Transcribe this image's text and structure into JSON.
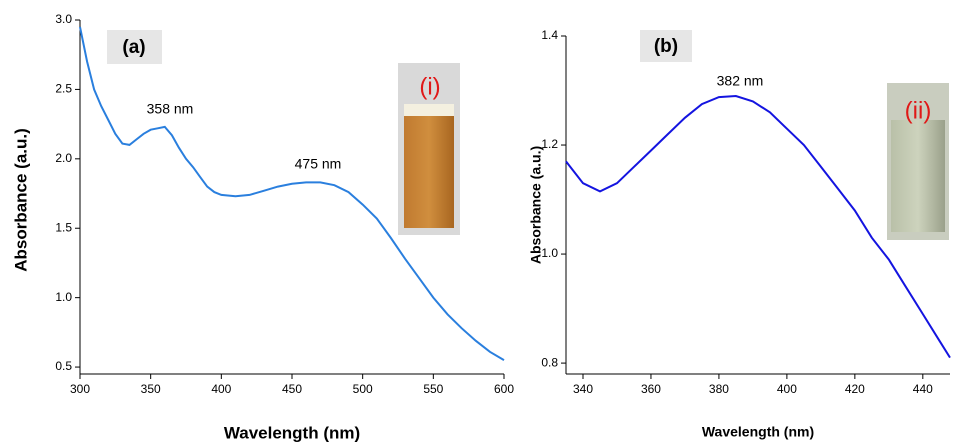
{
  "chart_data": [
    {
      "type": "line",
      "panel_label": "(a)",
      "inset_label": "(i)",
      "annotations": [
        "358 nm",
        "475 nm"
      ],
      "x_label": "Wavelength (nm)",
      "y_label": "Absorbance (a.u.)",
      "x": [
        300,
        305,
        310,
        315,
        320,
        325,
        330,
        335,
        340,
        345,
        350,
        355,
        360,
        365,
        370,
        375,
        380,
        385,
        390,
        395,
        400,
        410,
        420,
        430,
        440,
        450,
        460,
        470,
        480,
        490,
        500,
        510,
        520,
        530,
        540,
        550,
        560,
        570,
        580,
        590,
        600
      ],
      "series": [
        {
          "color": "#2a7fde",
          "values": [
            2.95,
            2.7,
            2.5,
            2.38,
            2.28,
            2.18,
            2.11,
            2.1,
            2.14,
            2.18,
            2.21,
            2.22,
            2.23,
            2.17,
            2.08,
            2.0,
            1.94,
            1.87,
            1.8,
            1.76,
            1.74,
            1.73,
            1.74,
            1.77,
            1.8,
            1.82,
            1.83,
            1.83,
            1.81,
            1.76,
            1.67,
            1.57,
            1.43,
            1.28,
            1.14,
            1.0,
            0.88,
            0.78,
            0.69,
            0.61,
            0.55
          ]
        }
      ],
      "xlim": [
        300,
        600
      ],
      "ylim": [
        0.45,
        3.0
      ],
      "xticks": [
        300,
        350,
        400,
        450,
        500,
        550,
        600
      ],
      "yticks": [
        0.5,
        {
          "value": 1,
          "label": "1.0"
        },
        1.5,
        {
          "value": 2,
          "label": "2.0"
        },
        2.5,
        {
          "value": 3,
          "label": "3.0"
        }
      ]
    },
    {
      "type": "line",
      "panel_label": "(b)",
      "inset_label": "(ii)",
      "annotations": [
        "382 nm"
      ],
      "x_label": "Wavelength (nm)",
      "y_label": "Absorbance (a.u.)",
      "x": [
        335,
        340,
        345,
        350,
        355,
        360,
        365,
        370,
        375,
        380,
        385,
        390,
        395,
        400,
        405,
        410,
        415,
        420,
        425,
        430,
        435,
        440,
        445,
        448
      ],
      "series": [
        {
          "color": "#1414e0",
          "values": [
            1.17,
            1.13,
            1.115,
            1.13,
            1.16,
            1.19,
            1.22,
            1.25,
            1.275,
            1.288,
            1.29,
            1.28,
            1.26,
            1.23,
            1.2,
            1.16,
            1.12,
            1.08,
            1.03,
            0.99,
            0.94,
            0.89,
            0.84,
            0.81
          ]
        }
      ],
      "xlim": [
        335,
        448
      ],
      "ylim": [
        0.78,
        1.4
      ],
      "xticks": [
        340,
        360,
        380,
        400,
        420,
        440
      ],
      "yticks": [
        0.8,
        {
          "value": 1,
          "label": "1.0"
        },
        1.2,
        1.4
      ]
    }
  ]
}
